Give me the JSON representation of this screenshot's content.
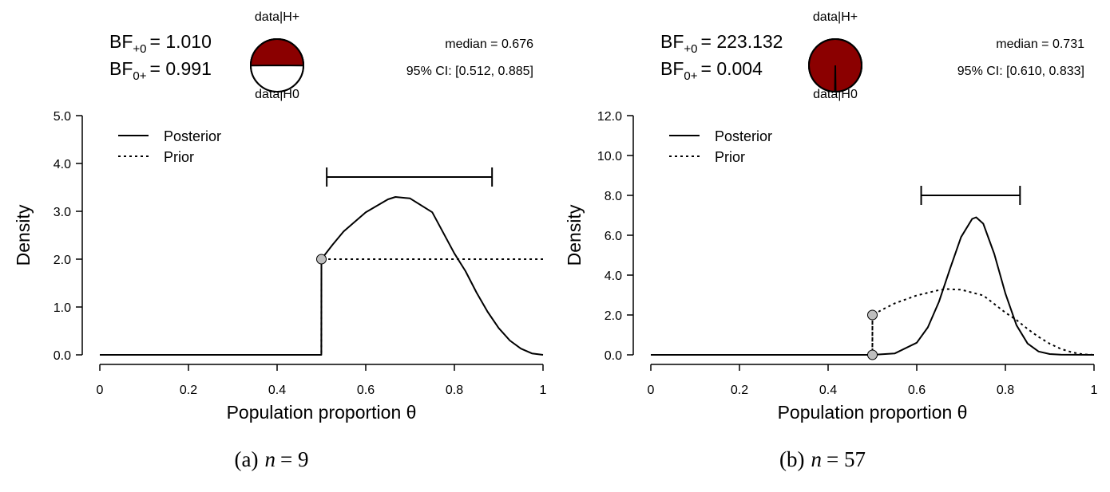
{
  "chart_data": [
    {
      "type": "line",
      "caption_prefix": "(a)",
      "caption_var": "n",
      "caption_value": "= 9",
      "bf_plus0_label": "BF",
      "bf_plus0_sub": "+0",
      "bf_plus0_value": "= 1.010",
      "bf_0plus_label": "BF",
      "bf_0plus_sub": "0+",
      "bf_0plus_value": "= 0.991",
      "pie": {
        "top_label": "data|H+",
        "bottom_label": "data|H0",
        "proportion_h_plus": 0.502,
        "fill_color": "#8b0000"
      },
      "median_text": "median = 0.676",
      "ci_text": "95% CI: [0.512, 0.885]",
      "ci": [
        0.512,
        0.885
      ],
      "xlabel": "Population proportion θ",
      "ylabel": "Density",
      "xlim": [
        0,
        1
      ],
      "ylim": [
        0,
        5
      ],
      "xticks": [
        "0",
        "0.2",
        "0.4",
        "0.6",
        "0.8",
        "1"
      ],
      "yticks": [
        "0.0",
        "1.0",
        "2.0",
        "3.0",
        "4.0",
        "5.0"
      ],
      "legend": {
        "placement": "top-left",
        "entries": [
          "Posterior",
          "Prior"
        ]
      },
      "points_at_null": [
        {
          "x": 0.5,
          "y": 2.0
        }
      ],
      "series": [
        {
          "name": "Posterior",
          "style": "solid",
          "x": [
            0,
            0.4999,
            0.5,
            0.525,
            0.55,
            0.6,
            0.65,
            0.667,
            0.7,
            0.75,
            0.8,
            0.825,
            0.85,
            0.875,
            0.9,
            0.925,
            0.95,
            0.975,
            1
          ],
          "y": [
            0,
            0,
            2.0,
            2.3,
            2.58,
            2.98,
            3.25,
            3.3,
            3.27,
            2.98,
            2.12,
            1.75,
            1.3,
            0.9,
            0.56,
            0.3,
            0.13,
            0.03,
            0
          ]
        },
        {
          "name": "Prior",
          "style": "dotted",
          "x": [
            0,
            0.4999,
            0.5,
            1
          ],
          "y": [
            0,
            0,
            2.0,
            2.0
          ]
        }
      ]
    },
    {
      "type": "line",
      "caption_prefix": "(b)",
      "caption_var": "n",
      "caption_value": "= 57",
      "bf_plus0_label": "BF",
      "bf_plus0_sub": "+0",
      "bf_plus0_value": "= 223.132",
      "bf_0plus_label": "BF",
      "bf_0plus_sub": "0+",
      "bf_0plus_value": "= 0.004",
      "pie": {
        "top_label": "data|H+",
        "bottom_label": "data|H0",
        "proportion_h_plus": 0.9955,
        "fill_color": "#8b0000"
      },
      "median_text": "median = 0.731",
      "ci_text": "95% CI: [0.610, 0.833]",
      "ci": [
        0.61,
        0.833
      ],
      "xlabel": "Population proportion θ",
      "ylabel": "Density",
      "xlim": [
        0,
        1
      ],
      "ylim": [
        0,
        12
      ],
      "xticks": [
        "0",
        "0.2",
        "0.4",
        "0.6",
        "0.8",
        "1"
      ],
      "yticks": [
        "0.0",
        "2.0",
        "4.0",
        "6.0",
        "8.0",
        "10.0",
        "12.0"
      ],
      "legend": {
        "placement": "top-left",
        "entries": [
          "Posterior",
          "Prior"
        ]
      },
      "points_at_null": [
        {
          "x": 0.5,
          "y": 2.0
        },
        {
          "x": 0.5,
          "y": 0.0
        }
      ],
      "series": [
        {
          "name": "Posterior",
          "style": "solid",
          "x": [
            0,
            0.5,
            0.55,
            0.6,
            0.625,
            0.65,
            0.675,
            0.7,
            0.725,
            0.734,
            0.75,
            0.775,
            0.8,
            0.825,
            0.85,
            0.875,
            0.9,
            0.925,
            1
          ],
          "y": [
            0,
            0,
            0.07,
            0.61,
            1.38,
            2.66,
            4.31,
            5.91,
            6.82,
            6.9,
            6.58,
            5.06,
            3.08,
            1.49,
            0.57,
            0.17,
            0.04,
            0.01,
            0
          ]
        },
        {
          "name": "Prior",
          "style": "dotted",
          "x": [
            0,
            0.4999,
            0.5,
            0.525,
            0.55,
            0.6,
            0.65,
            0.667,
            0.7,
            0.75,
            0.8,
            0.825,
            0.85,
            0.875,
            0.9,
            0.925,
            0.95,
            0.975,
            1
          ],
          "y": [
            0,
            0,
            2.0,
            2.3,
            2.58,
            2.98,
            3.25,
            3.3,
            3.27,
            2.98,
            2.12,
            1.75,
            1.3,
            0.9,
            0.56,
            0.3,
            0.13,
            0.03,
            0
          ]
        }
      ]
    }
  ]
}
